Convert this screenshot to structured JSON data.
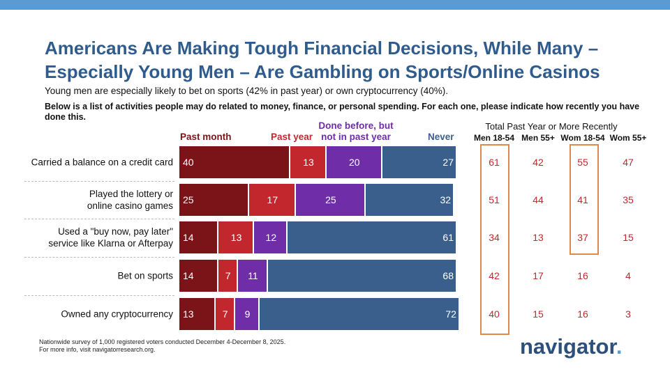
{
  "title": "Americans Are Making Tough Financial Decisions, While Many –\nEspecially Young Men – Are Gambling on Sports/Online Casinos",
  "subtitle": "Young men are especially likely to bet on sports (42% in past year) or own cryptocurrency (40%).",
  "question": "Below is a list of activities people may do related to money, finance, or personal spending. For each one, please indicate how recently you have done this.",
  "chart_data": {
    "type": "stacked-barh",
    "categories": [
      "Carried a balance on a credit card",
      "Played the lottery or\nonline casino games",
      "Used a \"buy now, pay later\"\nservice like Klarna or Afterpay",
      "Bet on sports",
      "Owned any cryptocurrency"
    ],
    "xlim": [
      0,
      100
    ],
    "series": [
      {
        "name": "Past month",
        "color": "#7a1418",
        "values": [
          40,
          25,
          14,
          14,
          13
        ]
      },
      {
        "name": "Past year",
        "color": "#c1272d",
        "values": [
          13,
          17,
          13,
          7,
          7
        ]
      },
      {
        "name": "Done before, but\nnot in past year",
        "color": "#6f2da8",
        "values": [
          20,
          25,
          12,
          11,
          9
        ]
      },
      {
        "name": "Never",
        "color": "#3a5f8c",
        "values": [
          27,
          32,
          61,
          68,
          72
        ]
      }
    ]
  },
  "table": {
    "title": "Total Past Year or More Recently",
    "columns": [
      "Men 18-54",
      "Men 55+",
      "Wom 18-54",
      "Wom 55+"
    ],
    "rows": [
      [
        61,
        42,
        55,
        47
      ],
      [
        51,
        44,
        41,
        35
      ],
      [
        34,
        13,
        37,
        15
      ],
      [
        42,
        17,
        16,
        4
      ],
      [
        40,
        15,
        16,
        3
      ]
    ]
  },
  "footnote": [
    "Nationwide survey of 1,000 registered voters conducted December 4-December 8, 2025.",
    "For more info, visit navigatorresearch.org."
  ],
  "logo": "navigator",
  "logo_dot": "."
}
